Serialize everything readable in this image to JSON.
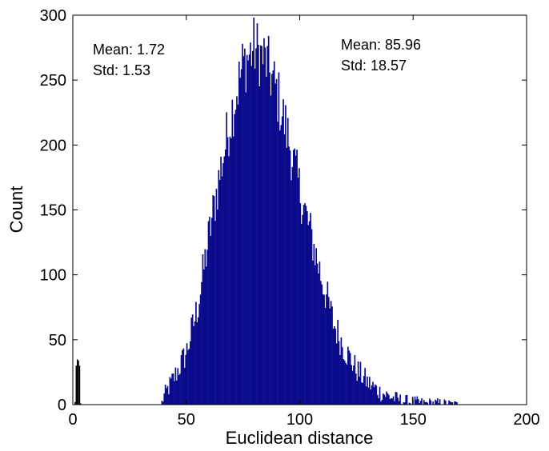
{
  "chart_data": {
    "type": "histogram",
    "xlabel": "Euclidean distance",
    "ylabel": "Count",
    "xlim": [
      0,
      200
    ],
    "ylim": [
      0,
      300
    ],
    "xticks": [
      0,
      50,
      100,
      150,
      200
    ],
    "yticks": [
      0,
      50,
      100,
      150,
      200,
      250,
      300
    ],
    "grid": false,
    "bin_width": 0.5,
    "series": [
      {
        "color": "#000000",
        "annotation": {
          "mean_label": "Mean: 1.72",
          "std_label": "Std: 1.53"
        },
        "bins": [
          {
            "x": 1.0,
            "count": 2
          },
          {
            "x": 1.5,
            "count": 30
          },
          {
            "x": 2.0,
            "count": 35
          },
          {
            "x": 2.5,
            "count": 34
          },
          {
            "x": 3.0,
            "count": 30
          },
          {
            "x": 3.5,
            "count": 1
          }
        ]
      },
      {
        "color": "#0a0a8c",
        "annotation": {
          "mean_label": "Mean: 85.96",
          "std_label": "Std: 18.57"
        },
        "profile": [
          {
            "x": 39,
            "count": 0
          },
          {
            "x": 40,
            "count": 6
          },
          {
            "x": 45,
            "count": 22
          },
          {
            "x": 50,
            "count": 40
          },
          {
            "x": 55,
            "count": 75
          },
          {
            "x": 60,
            "count": 130
          },
          {
            "x": 65,
            "count": 180
          },
          {
            "x": 70,
            "count": 225
          },
          {
            "x": 75,
            "count": 262
          },
          {
            "x": 80,
            "count": 275
          },
          {
            "x": 85,
            "count": 265
          },
          {
            "x": 90,
            "count": 240
          },
          {
            "x": 95,
            "count": 205
          },
          {
            "x": 100,
            "count": 165
          },
          {
            "x": 105,
            "count": 130
          },
          {
            "x": 110,
            "count": 95
          },
          {
            "x": 115,
            "count": 62
          },
          {
            "x": 120,
            "count": 42
          },
          {
            "x": 125,
            "count": 27
          },
          {
            "x": 130,
            "count": 17
          },
          {
            "x": 135,
            "count": 10
          },
          {
            "x": 140,
            "count": 6
          },
          {
            "x": 145,
            "count": 3
          },
          {
            "x": 150,
            "count": 2
          },
          {
            "x": 155,
            "count": 1
          },
          {
            "x": 160,
            "count": 1
          },
          {
            "x": 165,
            "count": 0.5
          },
          {
            "x": 170,
            "count": 0
          }
        ]
      }
    ]
  }
}
